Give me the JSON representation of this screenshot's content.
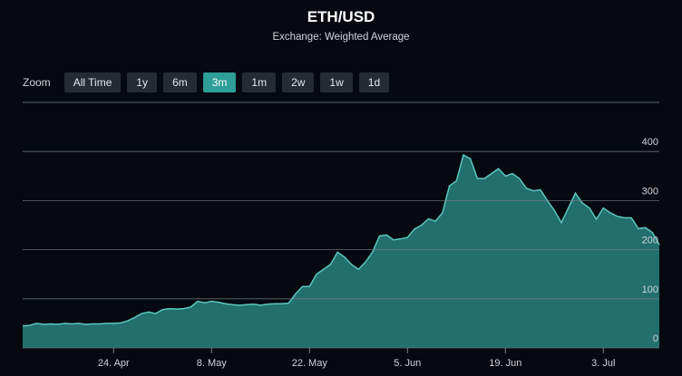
{
  "chart_data": {
    "type": "area",
    "title": "ETH/USD",
    "subtitle": "Exchange: Weighted Average",
    "zoom": {
      "label": "Zoom",
      "options": [
        {
          "label": "All Time",
          "active": false
        },
        {
          "label": "1y",
          "active": false
        },
        {
          "label": "6m",
          "active": false
        },
        {
          "label": "3m",
          "active": true
        },
        {
          "label": "1m",
          "active": false
        },
        {
          "label": "2w",
          "active": false
        },
        {
          "label": "1w",
          "active": false
        },
        {
          "label": "1d",
          "active": false
        }
      ]
    },
    "categories": [
      null,
      null,
      null,
      null,
      null,
      null,
      null,
      null,
      null,
      null,
      null,
      null,
      null,
      "24. Apr",
      null,
      null,
      null,
      null,
      null,
      null,
      null,
      null,
      null,
      null,
      null,
      null,
      null,
      "8. May",
      null,
      null,
      null,
      null,
      null,
      null,
      null,
      null,
      null,
      null,
      null,
      null,
      null,
      "22. May",
      null,
      null,
      null,
      null,
      null,
      null,
      null,
      null,
      null,
      null,
      null,
      null,
      null,
      "5. Jun",
      null,
      null,
      null,
      null,
      null,
      null,
      null,
      null,
      null,
      null,
      null,
      null,
      null,
      "19. Jun",
      null,
      null,
      null,
      null,
      null,
      null,
      null,
      null,
      null,
      null,
      null,
      null,
      null,
      "3. Jul",
      null,
      null,
      null,
      null,
      null,
      null,
      null,
      null
    ],
    "values": [
      45,
      46,
      50,
      48,
      49,
      48,
      50,
      49,
      50,
      48,
      49,
      49,
      50,
      50,
      51,
      55,
      62,
      70,
      73,
      70,
      78,
      80,
      79,
      80,
      83,
      95,
      92,
      95,
      93,
      90,
      88,
      87,
      88,
      89,
      87,
      89,
      90,
      90,
      91,
      110,
      125,
      125,
      150,
      160,
      170,
      195,
      185,
      170,
      160,
      175,
      195,
      228,
      230,
      220,
      222,
      225,
      242,
      250,
      263,
      258,
      275,
      330,
      340,
      393,
      385,
      345,
      345,
      355,
      365,
      350,
      355,
      345,
      325,
      320,
      322,
      300,
      280,
      255,
      285,
      315,
      295,
      285,
      262,
      285,
      275,
      268,
      265,
      265,
      243,
      245,
      235,
      210
    ],
    "color": "#5cc6bd",
    "fill": "#226f6d",
    "ylim": [
      0,
      500
    ],
    "yticks": [
      0,
      100,
      200,
      300,
      400
    ],
    "grid": true
  }
}
